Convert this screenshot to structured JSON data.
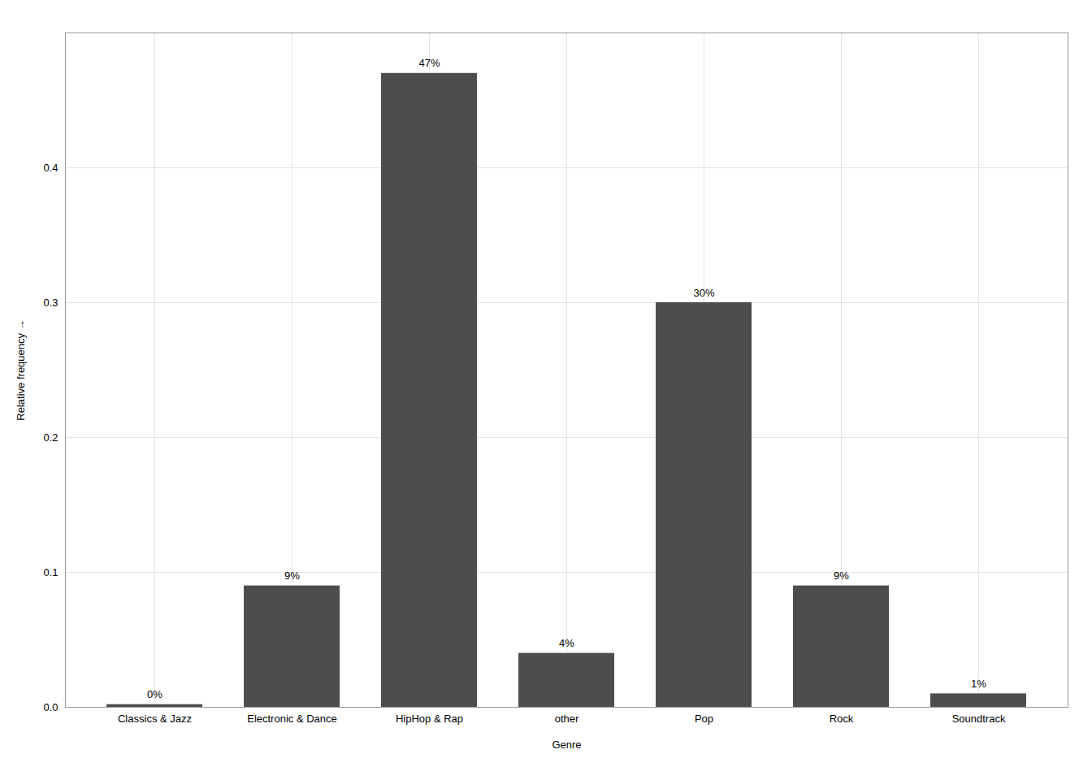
{
  "chart_data": {
    "type": "bar",
    "categories": [
      "Classics & Jazz",
      "Electronic & Dance",
      "HipHop & Rap",
      "other",
      "Pop",
      "Rock",
      "Soundtrack"
    ],
    "values": [
      0.002,
      0.09,
      0.47,
      0.04,
      0.3,
      0.09,
      0.01
    ],
    "value_labels": [
      "0%",
      "9%",
      "47%",
      "4%",
      "30%",
      "9%",
      "1%"
    ],
    "data_labels": true,
    "color": "#4d4d4d",
    "xlabel": "Genre",
    "ylabel": "Relative frequency",
    "ylim": [
      0,
      0.5
    ],
    "yticks": [
      {
        "value": 0.0,
        "label": "0.0"
      },
      0.1,
      0.2,
      0.3,
      0.4
    ],
    "grid": true
  }
}
